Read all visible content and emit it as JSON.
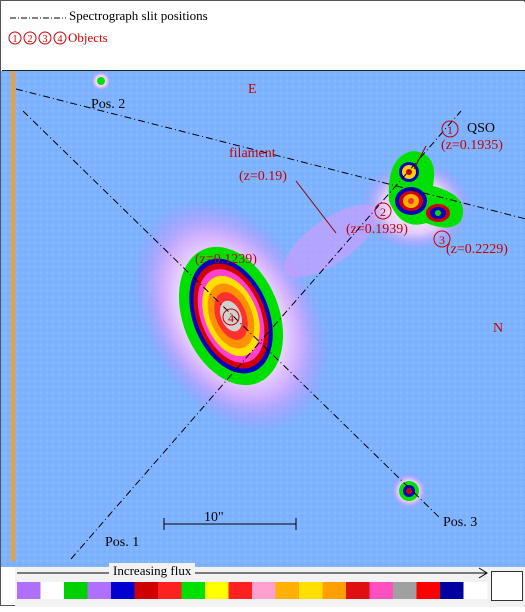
{
  "legend": {
    "slit_positions_label": "Spectrograph slit positions",
    "objects_label": "Objects",
    "object_markers": [
      "1",
      "2",
      "3",
      "4"
    ]
  },
  "compass": {
    "east": "E",
    "north": "N"
  },
  "slit_positions": [
    "Pos. 1",
    "Pos. 2",
    "Pos. 3"
  ],
  "objects": {
    "qso_name": "QSO",
    "qso_redshift": "(z=0.1935)",
    "obj2_redshift": "(z=0.1939)",
    "obj3_redshift": "(z=0.2229)",
    "obj4_redshift": "(z=0.1239)"
  },
  "filament": {
    "label": "filament",
    "redshift": "(z=0.19)"
  },
  "scale_bar_label": "10\"",
  "colorbar": {
    "label": "Increasing flux",
    "colors": [
      "#b070ff",
      "#ffffff",
      "#00d000",
      "#b070ff",
      "#0000d0",
      "#d00000",
      "#ff2020",
      "#00e000",
      "#ffff00",
      "#ff2020",
      "#ffa0d0",
      "#ffb000",
      "#ffe000",
      "#ffa000",
      "#e01010",
      "#ff50c0",
      "#a0a0a0",
      "#ff0000",
      "#0000a0",
      "#ffffff"
    ]
  },
  "colors": {
    "sky_background": "#7fb3ff",
    "frame_accent": "#f0a030",
    "annotation_red": "#c80000"
  }
}
